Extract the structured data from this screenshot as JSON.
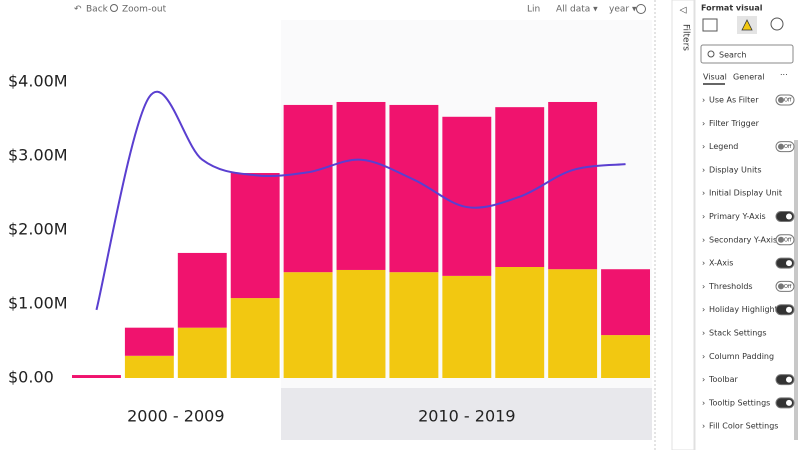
{
  "toolbar": {
    "back": "Back",
    "zoom_out": "Zoom-out",
    "scale": "Lin",
    "range": "All data ▾",
    "level": "year ▾"
  },
  "filters_label": "Filters",
  "format_pane": {
    "title": "Format visual",
    "search": "Search",
    "tabs": [
      "Visual",
      "General"
    ],
    "more": "···",
    "items": [
      {
        "label": "Use As Filter",
        "toggle": "Off"
      },
      {
        "label": "Filter Trigger"
      },
      {
        "label": "Legend",
        "toggle": "Off"
      },
      {
        "label": "Display Units"
      },
      {
        "label": "Initial Display Unit"
      },
      {
        "label": "Primary Y-Axis",
        "toggle": "On"
      },
      {
        "label": "Secondary Y-Axis",
        "toggle": "Off"
      },
      {
        "label": "X-Axis",
        "toggle": "On"
      },
      {
        "label": "Thresholds",
        "toggle": "Off"
      },
      {
        "label": "Holiday Highlight",
        "toggle": "On"
      },
      {
        "label": "Stack Settings"
      },
      {
        "label": "Column Padding"
      },
      {
        "label": "Toolbar",
        "toggle": "On"
      },
      {
        "label": "Tooltip Settings",
        "toggle": "On"
      },
      {
        "label": "Fill Color Settings"
      }
    ]
  },
  "chart_data": {
    "type": "bar",
    "stacked": true,
    "categories": [
      null,
      null,
      null,
      null,
      null,
      null,
      null,
      null,
      null,
      null,
      null
    ],
    "groups": [
      {
        "label": "2000 - 2009",
        "count": 4
      },
      {
        "label": "2010 - 2019",
        "count": 7
      }
    ],
    "series": [
      {
        "color": "#f2c811",
        "values": [
          0,
          0.3,
          0.68,
          1.08,
          1.43,
          1.46,
          1.43,
          1.38,
          1.5,
          1.47,
          0.58
        ]
      },
      {
        "color": "#f0136e",
        "values": [
          0.04,
          0.38,
          1.01,
          1.69,
          2.26,
          2.27,
          2.26,
          2.15,
          2.16,
          2.26,
          0.89
        ]
      },
      {
        "type": "line",
        "color": "#5a3fd0",
        "values": [
          0.92,
          3.8,
          2.95,
          2.74,
          2.78,
          2.95,
          2.68,
          2.31,
          2.45,
          2.81,
          2.89
        ]
      }
    ],
    "ylim": [
      0,
      4.4
    ],
    "yticks": [
      {
        "value": 0,
        "label": "$0.00"
      },
      {
        "value": 1,
        "label": "$1.00M"
      },
      {
        "value": 2,
        "label": "$2.00M"
      },
      {
        "value": 3,
        "label": "$3.00M"
      },
      {
        "value": 4,
        "label": "$4.00M"
      }
    ]
  }
}
